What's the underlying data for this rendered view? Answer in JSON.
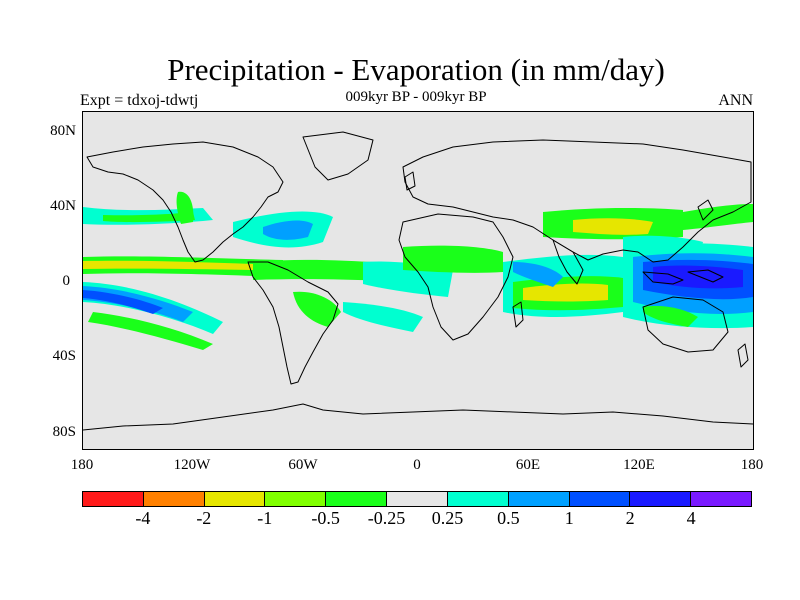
{
  "figure": {
    "title": "Precipitation - Evaporation (in mm/day)",
    "subtitle": "009kyr BP - 009kyr BP",
    "left_label": "Expt = tdxoj-tdwtj",
    "right_label": "ANN"
  },
  "map": {
    "background_color": "#e6e6e6",
    "coastline_color": "#000000",
    "lat_labels": [
      "80N",
      "40N",
      "0",
      "40S",
      "80S"
    ],
    "lon_labels": [
      "180",
      "120W",
      "60W",
      "0",
      "60E",
      "120E",
      "180"
    ],
    "palette": {
      "le_-4": "#ff1a1a",
      "-4_-2": "#ff8000",
      "-2_-1": "#e6e600",
      "-1_-0.5": "#80ff00",
      "-0.5_-0.25": "#1aff1a",
      "-0.25_0.25": "#e6e6e6",
      "0.25_0.5": "#00ffd0",
      "0.5_1": "#00a0ff",
      "1_2": "#0050ff",
      "2_4": "#1a1aff",
      "gt_4": "#7a1aff"
    }
  },
  "colorbar": {
    "colors": [
      "#ff1a1a",
      "#ff8000",
      "#e6e600",
      "#80ff00",
      "#1aff1a",
      "#e6e6e6",
      "#00ffd0",
      "#00a0ff",
      "#0050ff",
      "#1a1aff",
      "#7a1aff"
    ],
    "labels": [
      "-4",
      "-2",
      "-1",
      "-0.5",
      "-0.25",
      "0.25",
      "0.5",
      "1",
      "2",
      "4"
    ]
  }
}
